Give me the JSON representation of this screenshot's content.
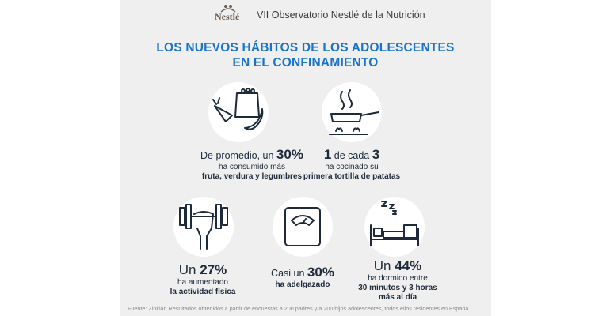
{
  "header": {
    "logo_text": "Nestlé",
    "title": "VII Observatorio Nestlé de la Nutrición"
  },
  "main_title": {
    "line1": "LOS NUEVOS HÁBITOS DE LOS ADOLESCENTES",
    "line2": "EN EL CONFINAMIENTO"
  },
  "stats": [
    {
      "prefix": "De promedio, un ",
      "value": "30%",
      "suffix": "",
      "line1": "ha consumido más",
      "line2": "fruta, verdura y legumbres",
      "icon": "fruit-vegetables-icon"
    },
    {
      "prefix": "",
      "value": "1",
      "suffix": " de cada ",
      "value2": "3",
      "line1": "ha cocinado su",
      "line2": "primera tortilla de patatas",
      "icon": "frying-pan-stove-icon"
    },
    {
      "prefix": "Un ",
      "value": "27%",
      "line1": "ha aumentado",
      "line2": "la actividad física",
      "icon": "dumbbell-arm-icon"
    },
    {
      "prefix": "Casi un ",
      "value": "30%",
      "line1": "ha adelgazado",
      "icon": "scale-icon"
    },
    {
      "prefix": "Un ",
      "value": "44%",
      "line1": "ha dormido entre",
      "line2": "30 minutos y 3 horas",
      "line3": "más al día",
      "icon": "bed-sleep-icon"
    }
  ],
  "footer": "Fuente: Zinklar. Resultados obtenidos a partir de encuestas a 200 padres y a 200 hijos adolescentes, todos ellos residentes en España.",
  "colors": {
    "title": "#1a73c9",
    "text": "#1d2a3a",
    "background": "#efefef"
  }
}
